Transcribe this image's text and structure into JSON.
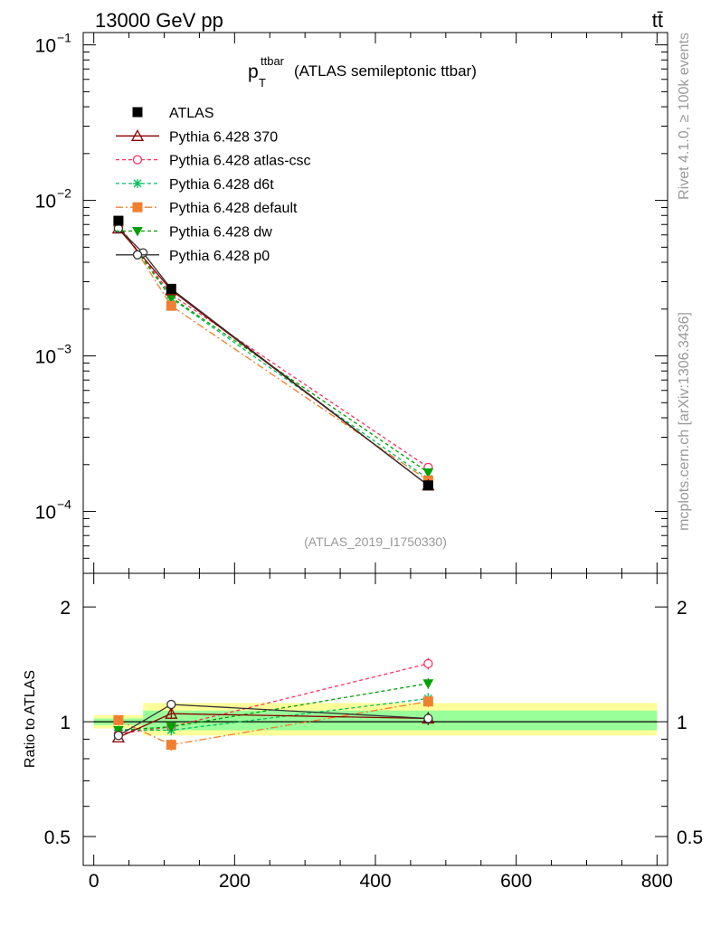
{
  "header": {
    "energy_label": "13000 GeV pp",
    "process_label": "tt̄"
  },
  "side_labels": {
    "rivet": "Rivet 4.1.0, ≥ 100k events",
    "mcplots": "mcplots.cern.ch [arXiv:1306.3436]"
  },
  "plot_title": {
    "main": "p",
    "sub": "T",
    "sup": "ttbar",
    "rest": "(ATLAS semileptonic ttbar)"
  },
  "analysis_id": "(ATLAS_2019_I1750330)",
  "ratio_ylabel": "Ratio to ATLAS",
  "colors": {
    "atlas": "#000000",
    "p370": "#8b0000",
    "atlas_csc": "#ff3060",
    "d6t": "#00c060",
    "default": "#f08030",
    "dw": "#00a000",
    "p0": "#303030",
    "band_yellow": "#ffff99",
    "band_green": "#99ff99"
  },
  "chart_data": {
    "type": "line",
    "x_range": [
      -15,
      815
    ],
    "x_ticks": [
      0,
      200,
      400,
      600,
      800
    ],
    "x_tick_labels": [
      "0",
      "200",
      "400",
      "600",
      "800"
    ],
    "main": {
      "yscale": "log",
      "ylim": [
        4e-05,
        0.12
      ],
      "y_tick_values": [
        0.0001,
        0.001,
        0.01,
        0.1
      ],
      "y_tick_base": [
        "10",
        "10",
        "10",
        "10"
      ],
      "y_tick_exp": [
        "−4",
        "−3",
        "−2",
        "−1"
      ]
    },
    "ratio": {
      "yscale": "log",
      "ylim": [
        0.42,
        2.45
      ],
      "y_tick_values": [
        0.5,
        1,
        2
      ],
      "y_tick_labels": [
        "0.5",
        "1",
        "2"
      ]
    },
    "x": [
      35,
      110,
      475
    ],
    "series": [
      {
        "key": "atlas",
        "name": "ATLAS",
        "style": "data",
        "marker": "square-filled",
        "values": [
          0.0074,
          0.0027,
          0.000147
        ],
        "ratio": [
          1.0,
          1.0,
          1.0
        ],
        "ratio_err": [
          0,
          0,
          0
        ]
      },
      {
        "key": "p370",
        "name": "Pythia 6.428 370",
        "style": "solid",
        "marker": "triangle-open",
        "values": [
          0.0066,
          0.00265,
          0.000147
        ],
        "ratio": [
          0.91,
          1.05,
          1.02
        ],
        "ratio_err": [
          0.015,
          0.03,
          0.04
        ]
      },
      {
        "key": "atlas_csc",
        "name": "Pythia 6.428 atlas-csc",
        "style": "dash",
        "marker": "circle-open",
        "values": [
          0.0069,
          0.00248,
          0.000192
        ],
        "ratio": [
          0.93,
          0.97,
          1.42
        ],
        "ratio_err": [
          0.015,
          0.03,
          0.05
        ]
      },
      {
        "key": "d6t",
        "name": "Pythia 6.428 d6t",
        "style": "dash",
        "marker": "star",
        "values": [
          0.0069,
          0.00235,
          0.000162
        ],
        "ratio": [
          0.95,
          0.95,
          1.15
        ],
        "ratio_err": [
          0.015,
          0.03,
          0.04
        ]
      },
      {
        "key": "default",
        "name": "Pythia 6.428 default",
        "style": "dashdot",
        "marker": "square-filled",
        "values": [
          0.0072,
          0.0021,
          0.000158
        ],
        "ratio": [
          1.01,
          0.87,
          1.13
        ],
        "ratio_err": [
          0.015,
          0.03,
          0.04
        ]
      },
      {
        "key": "dw",
        "name": "Pythia 6.428 dw",
        "style": "dash",
        "marker": "triangle-down-filled",
        "values": [
          0.0069,
          0.00238,
          0.000178
        ],
        "ratio": [
          0.95,
          0.97,
          1.26
        ],
        "ratio_err": [
          0.015,
          0.03,
          0.04
        ]
      },
      {
        "key": "p0",
        "name": "Pythia 6.428 p0",
        "style": "solid",
        "marker": "circle-open",
        "values": [
          0.0066,
          0.0027,
          0.000147
        ],
        "ratio": [
          0.92,
          1.11,
          1.02
        ],
        "ratio_err": [
          0.015,
          0.03,
          0.04
        ]
      }
    ],
    "extra_points": [
      {
        "key": "p0",
        "x": 70,
        "value": 0.0046
      }
    ],
    "uncertainty_bands": [
      {
        "x_from": 0,
        "x_to": 70,
        "yellow": [
          0.96,
          1.04
        ],
        "green": [
          0.98,
          1.02
        ]
      },
      {
        "x_from": 70,
        "x_to": 800,
        "yellow": [
          0.92,
          1.12
        ],
        "green": [
          0.95,
          1.07
        ]
      }
    ]
  }
}
